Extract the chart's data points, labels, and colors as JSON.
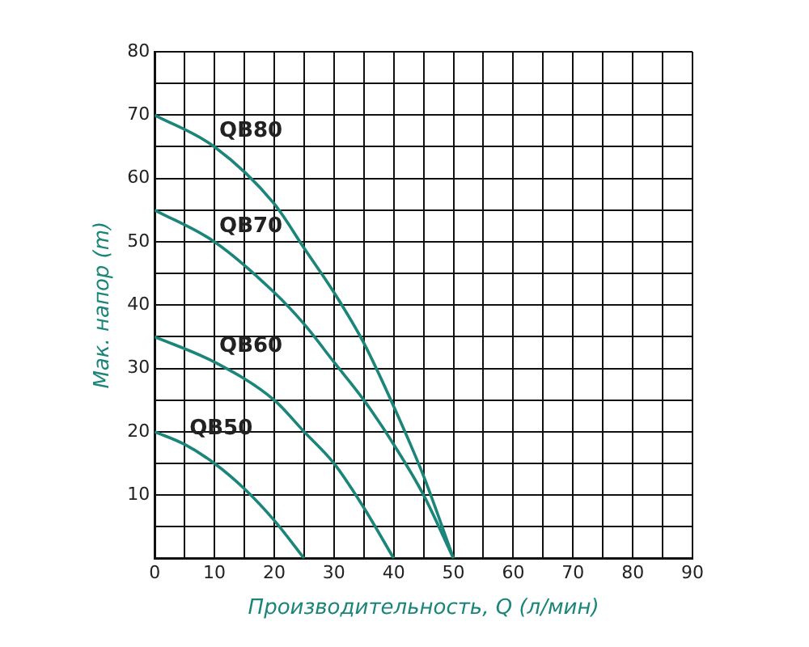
{
  "chart_data": {
    "type": "line",
    "xlabel": "Производительность, Q (л/мин)",
    "ylabel": "Мак. напор (m)",
    "xlim": [
      0,
      90
    ],
    "ylim": [
      0,
      80
    ],
    "xticks": [
      0,
      {
        "value": 5,
        "label": null
      },
      10,
      {
        "value": 15,
        "label": null
      },
      20,
      {
        "value": 25,
        "label": null
      },
      30,
      {
        "value": 35,
        "label": null
      },
      40,
      {
        "value": 45,
        "label": null
      },
      50,
      {
        "value": 55,
        "label": null
      },
      60,
      {
        "value": 65,
        "label": null
      },
      70,
      {
        "value": 75,
        "label": null
      },
      80,
      {
        "value": 85,
        "label": null
      },
      90
    ],
    "yticks": [
      {
        "value": 0,
        "label": null
      },
      {
        "value": 5,
        "label": null
      },
      10,
      {
        "value": 15,
        "label": null
      },
      20,
      {
        "value": 25,
        "label": null
      },
      30,
      {
        "value": 35,
        "label": null
      },
      40,
      {
        "value": 45,
        "label": null
      },
      50,
      {
        "value": 55,
        "label": null
      },
      60,
      {
        "value": 65,
        "label": null
      },
      70,
      {
        "value": 75,
        "label": null
      },
      80
    ],
    "grid": true,
    "legend": false,
    "marker": "none",
    "line_style": "solid",
    "series": [
      {
        "name": "QB80",
        "color": "#1b8579",
        "x": [
          0,
          10,
          20,
          25,
          30,
          35,
          40,
          45,
          50
        ],
        "values": [
          70,
          65,
          56,
          49,
          42,
          34,
          24,
          13,
          0
        ]
      },
      {
        "name": "QB70",
        "color": "#1b8579",
        "x": [
          0,
          10,
          20,
          25,
          30,
          35,
          40,
          45,
          50
        ],
        "values": [
          55,
          50,
          42,
          37,
          31,
          25,
          18,
          10,
          0
        ]
      },
      {
        "name": "QB60",
        "color": "#1b8579",
        "x": [
          0,
          10,
          20,
          25,
          30,
          35,
          40
        ],
        "values": [
          35,
          31,
          25,
          20,
          15,
          8,
          0
        ]
      },
      {
        "name": "QB50",
        "color": "#1b8579",
        "x": [
          0,
          5,
          10,
          15,
          20,
          25
        ],
        "values": [
          20,
          18,
          15,
          11,
          6,
          0
        ]
      }
    ]
  }
}
